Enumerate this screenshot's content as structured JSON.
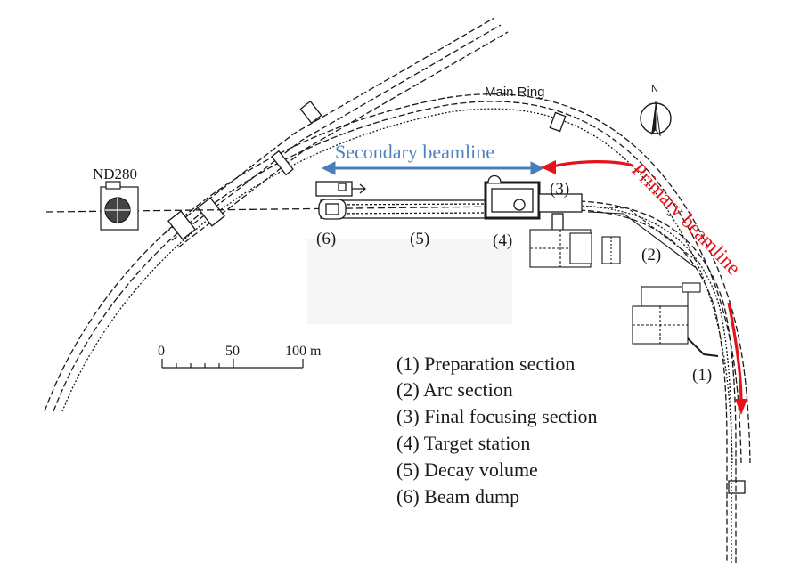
{
  "labels": {
    "main_ring": "Main Ring",
    "nd280": "ND280",
    "north": "N",
    "secondary_beamline": "Secondary beamline",
    "primary_beamline": "Primary beamline"
  },
  "section_markers": [
    "(1)",
    "(2)",
    "(3)",
    "(4)",
    "(5)",
    "(6)"
  ],
  "scale_bar": {
    "tick_0": "0",
    "tick_50": "50",
    "tick_100": "100 m"
  },
  "legend": [
    "(1) Preparation section",
    "(2) Arc section",
    "(3) Final focusing section",
    "(4) Target station",
    "(5) Decay volume",
    "(6) Beam dump"
  ],
  "colors": {
    "line": "#1a1a1a",
    "secondary_arrow": "#4a7ebb",
    "primary_arrow": "#e8121a",
    "secondary_text": "#4f81bd",
    "primary_text": "#e8121a"
  }
}
